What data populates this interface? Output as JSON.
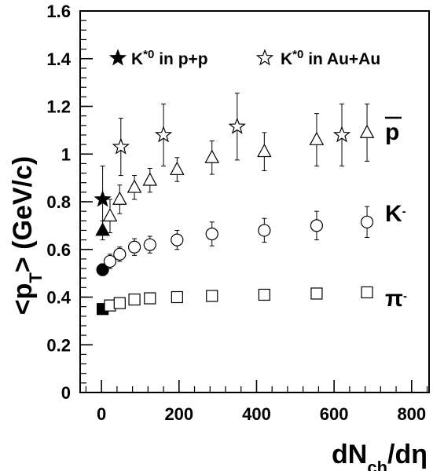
{
  "chart_data": {
    "type": "scatter",
    "xlabel": {
      "main": "dN",
      "sub": "ch",
      "tail": "/dη"
    },
    "ylabel": {
      "main": "<p",
      "sub": "T",
      "tail": "> (GeV/c)"
    },
    "xlim": [
      -55,
      845
    ],
    "ylim": [
      0,
      1.6
    ],
    "xticks": [
      0,
      200,
      400,
      600,
      800
    ],
    "xtick_labels": [
      "0",
      "200",
      "400",
      "600",
      "800"
    ],
    "yticks": [
      0,
      0.2,
      0.4,
      0.6,
      0.8,
      1.0,
      1.2,
      1.4,
      1.6
    ],
    "ytick_labels": [
      "0",
      "0.2",
      "0.4",
      "0.6",
      "0.8",
      "1",
      "1.2",
      "1.4",
      "1.6"
    ],
    "legend_position": "top",
    "legend": [
      {
        "marker": "filled-star",
        "text_main": "K",
        "text_sup": "*0",
        "text_tail": " in p+p"
      },
      {
        "marker": "open-star",
        "text_main": "K",
        "text_sup": "*0",
        "text_tail": " in Au+Au"
      }
    ],
    "series_labels": [
      {
        "key": "pbar",
        "text": "p",
        "overline": true
      },
      {
        "key": "kminus",
        "text": "K",
        "sup": "-"
      },
      {
        "key": "piminus",
        "text": "π",
        "sup": "-"
      }
    ],
    "series": [
      {
        "key": "kstar_pp",
        "marker": "star",
        "filled": true,
        "points": [
          {
            "x": 3,
            "y": 0.81,
            "err": 0.14
          }
        ]
      },
      {
        "key": "kstar_auau",
        "marker": "star",
        "filled": false,
        "points": [
          {
            "x": 50,
            "y": 1.03,
            "err": 0.12
          },
          {
            "x": 160,
            "y": 1.08,
            "err": 0.13
          },
          {
            "x": 350,
            "y": 1.115,
            "err": 0.14
          },
          {
            "x": 620,
            "y": 1.08,
            "err": 0.13
          }
        ]
      },
      {
        "key": "pbar_pp",
        "marker": "triangle",
        "filled": true,
        "points": [
          {
            "x": 3,
            "y": 0.68,
            "err": 0.04
          }
        ]
      },
      {
        "key": "pbar",
        "marker": "triangle",
        "filled": false,
        "points": [
          {
            "x": 22,
            "y": 0.74,
            "err": 0.07
          },
          {
            "x": 47,
            "y": 0.81,
            "err": 0.06
          },
          {
            "x": 85,
            "y": 0.86,
            "err": 0.05
          },
          {
            "x": 125,
            "y": 0.89,
            "err": 0.05
          },
          {
            "x": 195,
            "y": 0.935,
            "err": 0.05
          },
          {
            "x": 285,
            "y": 0.985,
            "err": 0.07
          },
          {
            "x": 420,
            "y": 1.01,
            "err": 0.08
          },
          {
            "x": 555,
            "y": 1.06,
            "err": 0.11
          },
          {
            "x": 685,
            "y": 1.09,
            "err": 0.12
          }
        ]
      },
      {
        "key": "kminus_pp",
        "marker": "circle",
        "filled": true,
        "points": [
          {
            "x": 3,
            "y": 0.515,
            "err": 0.025
          }
        ]
      },
      {
        "key": "kminus",
        "marker": "circle",
        "filled": false,
        "points": [
          {
            "x": 22,
            "y": 0.55,
            "err": 0.03
          },
          {
            "x": 47,
            "y": 0.58,
            "err": 0.03
          },
          {
            "x": 85,
            "y": 0.61,
            "err": 0.035
          },
          {
            "x": 125,
            "y": 0.62,
            "err": 0.035
          },
          {
            "x": 195,
            "y": 0.64,
            "err": 0.04
          },
          {
            "x": 285,
            "y": 0.665,
            "err": 0.05
          },
          {
            "x": 420,
            "y": 0.68,
            "err": 0.05
          },
          {
            "x": 555,
            "y": 0.7,
            "err": 0.06
          },
          {
            "x": 685,
            "y": 0.715,
            "err": 0.065
          }
        ]
      },
      {
        "key": "piminus_pp",
        "marker": "square",
        "filled": true,
        "points": [
          {
            "x": 3,
            "y": 0.35,
            "err": 0.0
          }
        ]
      },
      {
        "key": "piminus",
        "marker": "square",
        "filled": false,
        "points": [
          {
            "x": 22,
            "y": 0.365,
            "err": 0.0
          },
          {
            "x": 47,
            "y": 0.375,
            "err": 0.0
          },
          {
            "x": 85,
            "y": 0.39,
            "err": 0.0
          },
          {
            "x": 125,
            "y": 0.395,
            "err": 0.0
          },
          {
            "x": 195,
            "y": 0.4,
            "err": 0.0
          },
          {
            "x": 285,
            "y": 0.405,
            "err": 0.0
          },
          {
            "x": 420,
            "y": 0.41,
            "err": 0.0
          },
          {
            "x": 555,
            "y": 0.415,
            "err": 0.0
          },
          {
            "x": 685,
            "y": 0.42,
            "err": 0.0
          }
        ]
      }
    ]
  }
}
